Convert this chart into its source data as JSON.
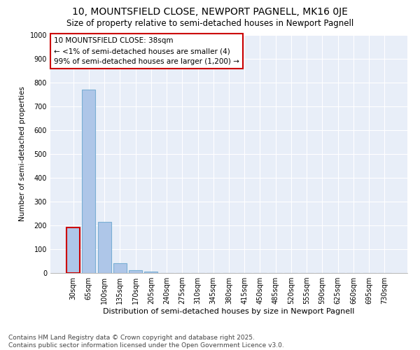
{
  "title": "10, MOUNTSFIELD CLOSE, NEWPORT PAGNELL, MK16 0JE",
  "subtitle": "Size of property relative to semi-detached houses in Newport Pagnell",
  "xlabel": "Distribution of semi-detached houses by size in Newport Pagnell",
  "ylabel": "Number of semi-detached properties",
  "categories": [
    "30sqm",
    "65sqm",
    "100sqm",
    "135sqm",
    "170sqm",
    "205sqm",
    "240sqm",
    "275sqm",
    "310sqm",
    "345sqm",
    "380sqm",
    "415sqm",
    "450sqm",
    "485sqm",
    "520sqm",
    "555sqm",
    "590sqm",
    "625sqm",
    "660sqm",
    "695sqm",
    "730sqm"
  ],
  "values": [
    190,
    770,
    215,
    40,
    12,
    5,
    1,
    0,
    0,
    0,
    0,
    0,
    0,
    0,
    0,
    0,
    0,
    0,
    0,
    0,
    0
  ],
  "bar_color": "#aec6e8",
  "bar_edge_color": "#7aafd4",
  "highlight_bar_index": 0,
  "highlight_bar_edge_color": "#cc0000",
  "ylim": [
    0,
    1000
  ],
  "yticks": [
    0,
    100,
    200,
    300,
    400,
    500,
    600,
    700,
    800,
    900,
    1000
  ],
  "annotation_text": "10 MOUNTSFIELD CLOSE: 38sqm\n← <1% of semi-detached houses are smaller (4)\n99% of semi-detached houses are larger (1,200) →",
  "annotation_box_edge_color": "#cc0000",
  "background_color": "#e8eef8",
  "grid_color": "#ffffff",
  "footer_text": "Contains HM Land Registry data © Crown copyright and database right 2025.\nContains public sector information licensed under the Open Government Licence v3.0.",
  "title_fontsize": 10,
  "subtitle_fontsize": 8.5,
  "xlabel_fontsize": 8,
  "ylabel_fontsize": 7.5,
  "tick_fontsize": 7,
  "annotation_fontsize": 7.5,
  "footer_fontsize": 6.5
}
